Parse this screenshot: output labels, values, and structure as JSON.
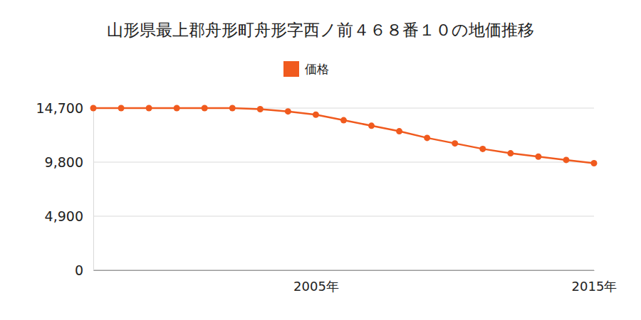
{
  "chart_data": {
    "type": "line",
    "title": "山形県最上郡舟形町舟形字西ノ前４６８番１０の地価推移",
    "x": [
      1997,
      1998,
      1999,
      2000,
      2001,
      2002,
      2003,
      2004,
      2005,
      2006,
      2007,
      2008,
      2009,
      2010,
      2011,
      2012,
      2013,
      2014,
      2015
    ],
    "series": [
      {
        "name": "価格",
        "color": "#f05a1e",
        "marker": "circle",
        "values": [
          14700,
          14700,
          14700,
          14700,
          14700,
          14700,
          14600,
          14400,
          14100,
          13600,
          13100,
          12600,
          12000,
          11500,
          11000,
          10600,
          10300,
          10000,
          9700
        ]
      }
    ],
    "xlim": [
      1997,
      2015
    ],
    "xticks": [
      {
        "value": 2005,
        "label": "2005年"
      },
      {
        "value": 2015,
        "label": "2015年"
      }
    ],
    "ylim": [
      0,
      14700
    ],
    "yticks": [
      0,
      {
        "value": 4900,
        "label": "4,900"
      },
      {
        "value": 9800,
        "label": "9,800"
      },
      {
        "value": 14700,
        "label": "14,700"
      }
    ],
    "grid": true,
    "legend": "top"
  }
}
